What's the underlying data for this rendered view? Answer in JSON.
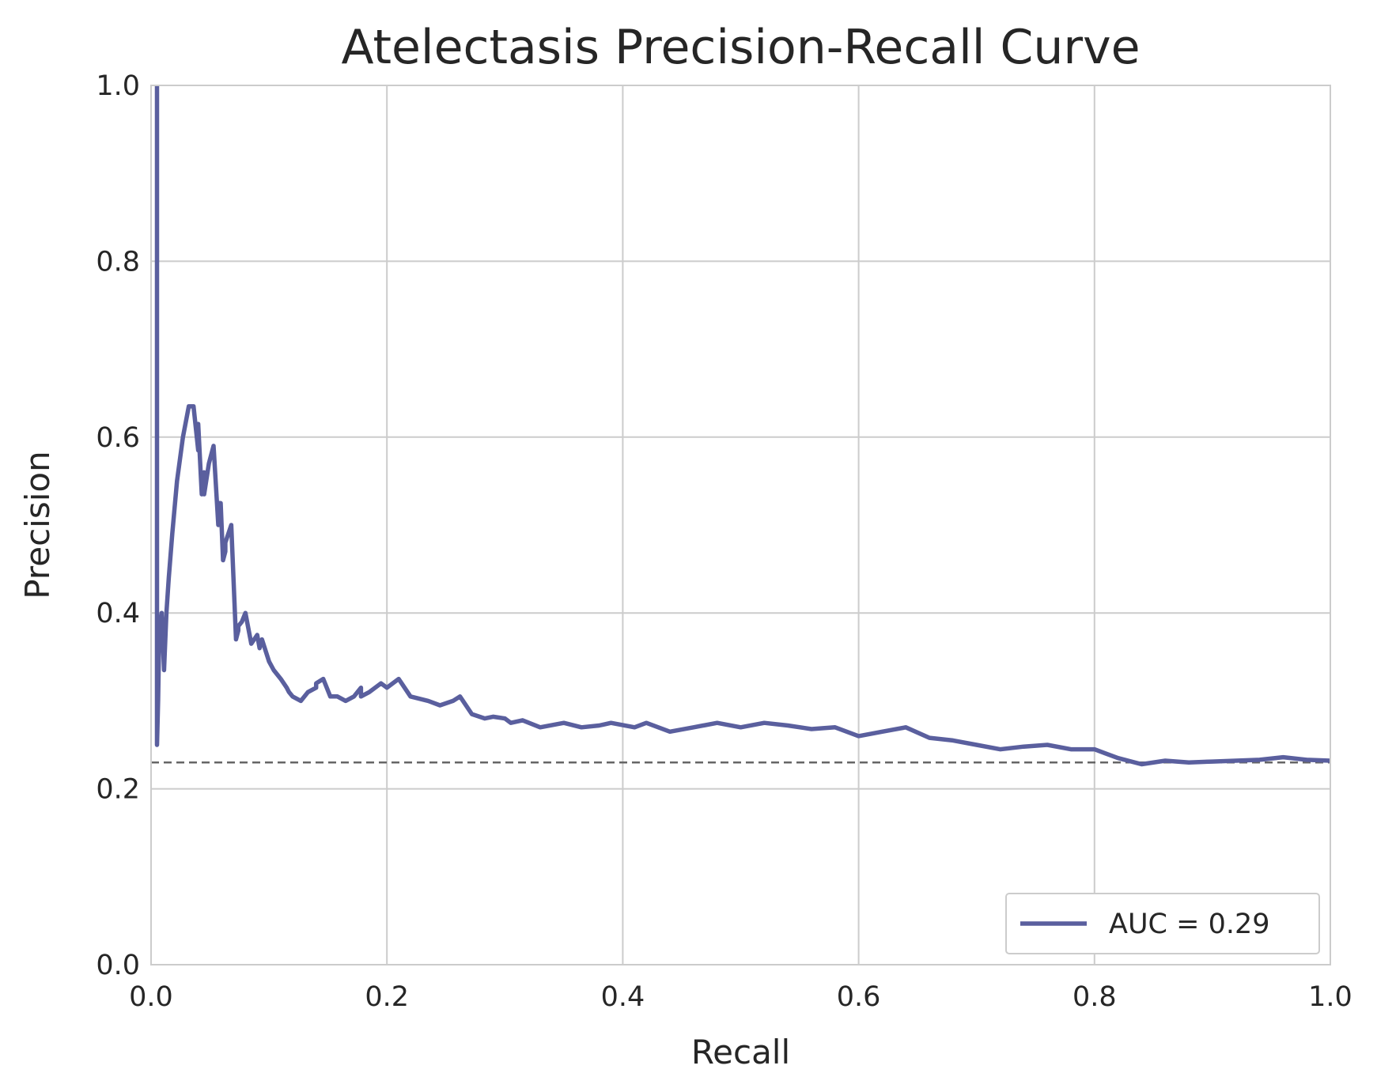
{
  "chart_data": {
    "type": "line",
    "title": "Atelectasis Precision-Recall Curve",
    "xlabel": "Recall",
    "ylabel": "Precision",
    "xlim": [
      0,
      1
    ],
    "ylim": [
      0,
      1
    ],
    "x_ticks": [
      "0.0",
      "0.2",
      "0.4",
      "0.6",
      "0.8",
      "1.0"
    ],
    "y_ticks": [
      "0.0",
      "0.2",
      "0.4",
      "0.6",
      "0.8",
      "1.0"
    ],
    "grid": true,
    "legend_position": "lower-right",
    "series": [
      {
        "name": "AUC = 0.29",
        "color": "#5a5f9e",
        "x": [
          0.005,
          0.005,
          0.006,
          0.007,
          0.009,
          0.011,
          0.013,
          0.015,
          0.018,
          0.022,
          0.027,
          0.032,
          0.036,
          0.04,
          0.04,
          0.043,
          0.045,
          0.045,
          0.049,
          0.053,
          0.057,
          0.057,
          0.059,
          0.061,
          0.063,
          0.063,
          0.068,
          0.072,
          0.074,
          0.074,
          0.077,
          0.08,
          0.085,
          0.09,
          0.092,
          0.094,
          0.1,
          0.104,
          0.11,
          0.115,
          0.117,
          0.12,
          0.127,
          0.133,
          0.14,
          0.14,
          0.146,
          0.152,
          0.158,
          0.165,
          0.172,
          0.178,
          0.178,
          0.185,
          0.195,
          0.2,
          0.21,
          0.22,
          0.235,
          0.245,
          0.256,
          0.262,
          0.272,
          0.283,
          0.29,
          0.3,
          0.305,
          0.315,
          0.33,
          0.35,
          0.365,
          0.38,
          0.39,
          0.41,
          0.42,
          0.44,
          0.46,
          0.48,
          0.5,
          0.52,
          0.54,
          0.56,
          0.58,
          0.6,
          0.62,
          0.64,
          0.66,
          0.68,
          0.7,
          0.72,
          0.74,
          0.76,
          0.78,
          0.8,
          0.82,
          0.84,
          0.86,
          0.88,
          0.9,
          0.92,
          0.94,
          0.96,
          0.98,
          1.0
        ],
        "y": [
          1.0,
          0.25,
          0.3,
          0.38,
          0.4,
          0.335,
          0.4,
          0.44,
          0.49,
          0.55,
          0.6,
          0.635,
          0.635,
          0.585,
          0.615,
          0.535,
          0.56,
          0.535,
          0.57,
          0.59,
          0.5,
          0.525,
          0.525,
          0.46,
          0.47,
          0.48,
          0.5,
          0.37,
          0.38,
          0.385,
          0.39,
          0.4,
          0.365,
          0.375,
          0.36,
          0.37,
          0.345,
          0.335,
          0.325,
          0.315,
          0.31,
          0.305,
          0.3,
          0.31,
          0.315,
          0.32,
          0.325,
          0.305,
          0.305,
          0.3,
          0.305,
          0.315,
          0.305,
          0.31,
          0.32,
          0.315,
          0.325,
          0.305,
          0.3,
          0.295,
          0.3,
          0.305,
          0.285,
          0.28,
          0.282,
          0.28,
          0.275,
          0.278,
          0.27,
          0.275,
          0.27,
          0.272,
          0.275,
          0.27,
          0.275,
          0.265,
          0.27,
          0.275,
          0.27,
          0.275,
          0.272,
          0.268,
          0.27,
          0.26,
          0.265,
          0.27,
          0.258,
          0.255,
          0.25,
          0.245,
          0.248,
          0.25,
          0.245,
          0.245,
          0.235,
          0.228,
          0.232,
          0.23,
          0.231,
          0.232,
          0.233,
          0.236,
          0.233,
          0.232
        ]
      },
      {
        "name": "",
        "color": "#666666",
        "style": "dashed",
        "x": [
          0,
          1
        ],
        "y": [
          0.23,
          0.23
        ]
      }
    ]
  }
}
